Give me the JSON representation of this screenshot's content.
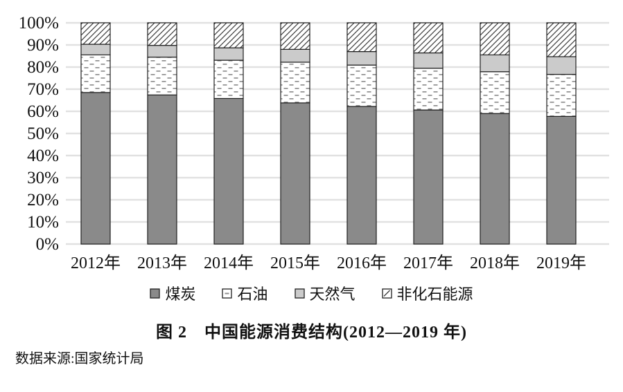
{
  "figure": {
    "title": "图 2　中国能源消费结构(2012—2019 年)",
    "source": "数据来源:国家统计局"
  },
  "chart_data": {
    "type": "bar",
    "stacked": true,
    "title": "图 2　中国能源消费结构(2012—2019 年)",
    "source": "数据来源:国家统计局",
    "categories": [
      "2012年",
      "2013年",
      "2014年",
      "2015年",
      "2016年",
      "2017年",
      "2018年",
      "2019年"
    ],
    "series": [
      {
        "name": "煤炭",
        "pattern": "solid-gray",
        "values": [
          68.5,
          67.4,
          65.8,
          63.8,
          62.2,
          60.6,
          59.0,
          57.7
        ]
      },
      {
        "name": "石油",
        "pattern": "dashed-dots",
        "values": [
          17.0,
          17.1,
          17.3,
          18.4,
          18.7,
          18.9,
          18.9,
          19.0
        ]
      },
      {
        "name": "天然气",
        "pattern": "solid-lightgray",
        "values": [
          4.8,
          5.3,
          5.6,
          5.8,
          6.1,
          6.9,
          7.6,
          8.0
        ]
      },
      {
        "name": "非化石能源",
        "pattern": "diagonal-hatch",
        "values": [
          9.7,
          10.2,
          11.3,
          12.0,
          13.0,
          13.6,
          14.5,
          15.3
        ]
      }
    ],
    "xlabel": "",
    "ylabel": "",
    "ylim": [
      0,
      100
    ],
    "ytick_labels": [
      "0%",
      "10%",
      "20%",
      "30%",
      "40%",
      "50%",
      "60%",
      "70%",
      "80%",
      "90%",
      "100%"
    ],
    "grid": "horizontal",
    "legend_position": "bottom",
    "colors": {
      "coal_fill": "#8a8a8a",
      "gas_fill": "#cbcbcb",
      "hatch_ink": "#3c3c3c",
      "dash_ink": "#8f8f8f",
      "border": "#1f1f1f",
      "gridline": "#e1e1e1",
      "text": "#111111",
      "background": "#ffffff"
    }
  }
}
